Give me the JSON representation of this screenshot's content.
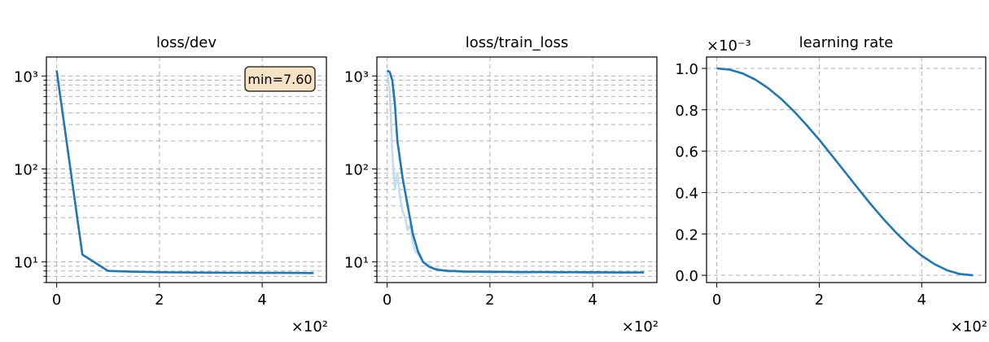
{
  "colors": {
    "line": "#1f77b4",
    "raw": "#c4dcee",
    "badge": "#f6e3c4"
  },
  "chart_data": [
    {
      "type": "line",
      "title": "loss/dev",
      "yscale": "log",
      "ylim": [
        6,
        1600
      ],
      "xlim": [
        -0.2,
        5.25
      ],
      "grid": true,
      "x_multiplier_label": "×10²",
      "x_ticks": [
        0,
        2,
        4
      ],
      "x_tick_labels": [
        "0",
        "2",
        "4"
      ],
      "y_major_ticks": [
        10,
        100,
        1000
      ],
      "y_tick_labels": [
        "10¹",
        "10²",
        "10³"
      ],
      "annotation": "min=7.60",
      "series": [
        {
          "x": [
            0,
            0.5,
            1,
            1.5,
            2,
            2.5,
            3,
            3.5,
            4,
            4.5,
            5
          ],
          "y": [
            1150,
            12,
            8,
            7.85,
            7.75,
            7.7,
            7.68,
            7.65,
            7.63,
            7.62,
            7.6
          ]
        }
      ]
    },
    {
      "type": "line",
      "title": "loss/train_loss",
      "yscale": "log",
      "ylim": [
        6,
        1600
      ],
      "xlim": [
        -0.2,
        5.25
      ],
      "grid": true,
      "x_multiplier_label": "×10²",
      "x_ticks": [
        0,
        2,
        4
      ],
      "x_tick_labels": [
        "0",
        "2",
        "4"
      ],
      "y_major_ticks": [
        10,
        100,
        1000
      ],
      "y_tick_labels": [
        "10¹",
        "10²",
        "10³"
      ],
      "series": [
        {
          "x": [
            0,
            0.05,
            0.1,
            0.15,
            0.2,
            0.3,
            0.4,
            0.5,
            0.6,
            0.7,
            0.8,
            0.9,
            1.0,
            1.2,
            1.5,
            2,
            2.5,
            3,
            3.5,
            4,
            4.5,
            5
          ],
          "y": [
            1150,
            1100,
            900,
            500,
            200,
            80,
            40,
            20,
            13,
            10,
            9,
            8.5,
            8.2,
            8.0,
            7.9,
            7.85,
            7.8,
            7.8,
            7.75,
            7.75,
            7.7,
            7.7
          ]
        },
        {
          "x": [
            0,
            0.05,
            0.1,
            0.15,
            0.2,
            0.25,
            0.3,
            0.35,
            0.4,
            0.45,
            0.5,
            0.55,
            0.6,
            0.65,
            0.7,
            0.8,
            0.9,
            1.0,
            1.1,
            1.2,
            1.3,
            1.5,
            1.7,
            2,
            2.3,
            2.6,
            3,
            3.3,
            3.6,
            4,
            4.3,
            4.6,
            5
          ],
          "y": [
            1150,
            700,
            150,
            60,
            90,
            50,
            35,
            30,
            22,
            25,
            16,
            13,
            12,
            11,
            10,
            9.5,
            8.5,
            8.4,
            8.0,
            7.8,
            8.1,
            7.7,
            7.9,
            7.6,
            7.8,
            7.5,
            7.7,
            7.6,
            7.8,
            7.5,
            7.7,
            7.6,
            7.7
          ]
        }
      ]
    },
    {
      "type": "line",
      "title": "learning rate",
      "yscale": "linear",
      "ylim": [
        -0.035,
        1.055
      ],
      "xlim": [
        -0.2,
        5.25
      ],
      "grid": true,
      "x_multiplier_label": "×10²",
      "y_multiplier_label": "×10⁻³",
      "x_ticks": [
        0,
        2,
        4
      ],
      "x_tick_labels": [
        "0",
        "2",
        "4"
      ],
      "y_ticks": [
        0,
        0.2,
        0.4,
        0.6,
        0.8,
        1.0
      ],
      "y_tick_labels": [
        "0.0",
        "0.2",
        "0.4",
        "0.6",
        "0.8",
        "1.0"
      ],
      "series": [
        {
          "x": [
            0,
            0.25,
            0.5,
            0.75,
            1,
            1.25,
            1.5,
            1.75,
            2,
            2.25,
            2.5,
            2.75,
            3,
            3.25,
            3.5,
            3.75,
            4,
            4.25,
            4.5,
            4.75,
            5
          ],
          "y": [
            1.0,
            0.994,
            0.976,
            0.946,
            0.905,
            0.854,
            0.794,
            0.727,
            0.655,
            0.578,
            0.5,
            0.422,
            0.345,
            0.273,
            0.206,
            0.146,
            0.095,
            0.054,
            0.024,
            0.006,
            0.0
          ]
        }
      ]
    }
  ]
}
